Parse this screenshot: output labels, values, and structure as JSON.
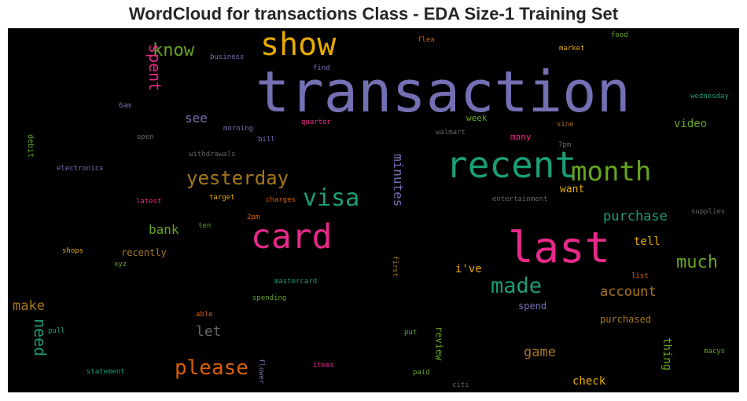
{
  "chart_data": {
    "type": "wordcloud",
    "title": "WordCloud for transactions Class - EDA Size-1 Training Set",
    "background": "#000000",
    "palette": [
      "#7570b3",
      "#d95f02",
      "#1b9e77",
      "#e7298a",
      "#66a61e",
      "#e6ab02",
      "#a6761d",
      "#666666"
    ],
    "words": [
      {
        "text": "transaction",
        "color": "#7570b3"
      },
      {
        "text": "recent",
        "color": "#1b9e77"
      },
      {
        "text": "last",
        "color": "#e7298a"
      },
      {
        "text": "card",
        "color": "#e7298a"
      },
      {
        "text": "show",
        "color": "#e6ab02"
      },
      {
        "text": "month",
        "color": "#66a61e"
      },
      {
        "text": "visa",
        "color": "#1b9e77"
      },
      {
        "text": "yesterday",
        "color": "#a6761d"
      },
      {
        "text": "please",
        "color": "#d95f02"
      },
      {
        "text": "made",
        "color": "#1b9e77"
      },
      {
        "text": "much",
        "color": "#66a61e"
      },
      {
        "text": "know",
        "color": "#66a61e"
      },
      {
        "text": "spent",
        "color": "#e7298a"
      },
      {
        "text": "minutes",
        "color": "#7570b3"
      },
      {
        "text": "purchase",
        "color": "#1b9e77"
      },
      {
        "text": "account",
        "color": "#a6761d"
      },
      {
        "text": "need",
        "color": "#1b9e77"
      },
      {
        "text": "make",
        "color": "#a6761d"
      },
      {
        "text": "let",
        "color": "#666666"
      },
      {
        "text": "game",
        "color": "#a6761d"
      },
      {
        "text": "see",
        "color": "#7570b3"
      },
      {
        "text": "bank",
        "color": "#66a61e"
      },
      {
        "text": "video",
        "color": "#66a61e"
      },
      {
        "text": "want",
        "color": "#e6ab02"
      },
      {
        "text": "tell",
        "color": "#e6ab02"
      },
      {
        "text": "i've",
        "color": "#e6ab02"
      },
      {
        "text": "thing",
        "color": "#66a61e"
      },
      {
        "text": "check",
        "color": "#e6ab02"
      },
      {
        "text": "recently",
        "color": "#a6761d"
      },
      {
        "text": "purchased",
        "color": "#a6761d"
      },
      {
        "text": "spend",
        "color": "#7570b3"
      },
      {
        "text": "review",
        "color": "#66a61e"
      },
      {
        "text": "week",
        "color": "#66a61e"
      },
      {
        "text": "many",
        "color": "#e7298a"
      },
      {
        "text": "debit",
        "color": "#66a61e"
      },
      {
        "text": "business",
        "color": "#7570b3"
      },
      {
        "text": "find",
        "color": "#7570b3"
      },
      {
        "text": "flea",
        "color": "#d95f02"
      },
      {
        "text": "food",
        "color": "#66a61e"
      },
      {
        "text": "market",
        "color": "#e6ab02"
      },
      {
        "text": "wednesday",
        "color": "#1b9e77"
      },
      {
        "text": "6am",
        "color": "#7570b3"
      },
      {
        "text": "quarter",
        "color": "#e7298a"
      },
      {
        "text": "morning",
        "color": "#7570b3"
      },
      {
        "text": "sine",
        "color": "#a6761d"
      },
      {
        "text": "open",
        "color": "#666666"
      },
      {
        "text": "bill",
        "color": "#7570b3"
      },
      {
        "text": "walmart",
        "color": "#666666"
      },
      {
        "text": "7pm",
        "color": "#666666"
      },
      {
        "text": "withdrawals",
        "color": "#666666"
      },
      {
        "text": "electronics",
        "color": "#7570b3"
      },
      {
        "text": "entertainment",
        "color": "#666666"
      },
      {
        "text": "latest",
        "color": "#e7298a"
      },
      {
        "text": "target",
        "color": "#e6ab02"
      },
      {
        "text": "charges",
        "color": "#d95f02"
      },
      {
        "text": "2pm",
        "color": "#d95f02"
      },
      {
        "text": "supplies",
        "color": "#666666"
      },
      {
        "text": "ten",
        "color": "#66a61e"
      },
      {
        "text": "shops",
        "color": "#e6ab02"
      },
      {
        "text": "xyz",
        "color": "#66a61e"
      },
      {
        "text": "first",
        "color": "#a6761d"
      },
      {
        "text": "mastercard",
        "color": "#1b9e77"
      },
      {
        "text": "list",
        "color": "#d95f02"
      },
      {
        "text": "spending",
        "color": "#66a61e"
      },
      {
        "text": "able",
        "color": "#d95f02"
      },
      {
        "text": "pull",
        "color": "#1b9e77"
      },
      {
        "text": "put",
        "color": "#66a61e"
      },
      {
        "text": "macys",
        "color": "#66a61e"
      },
      {
        "text": "flower",
        "color": "#7570b3"
      },
      {
        "text": "items",
        "color": "#e7298a"
      },
      {
        "text": "statement",
        "color": "#1b9e77"
      },
      {
        "text": "paid",
        "color": "#66a61e"
      },
      {
        "text": "citi",
        "color": "#666666"
      }
    ]
  }
}
